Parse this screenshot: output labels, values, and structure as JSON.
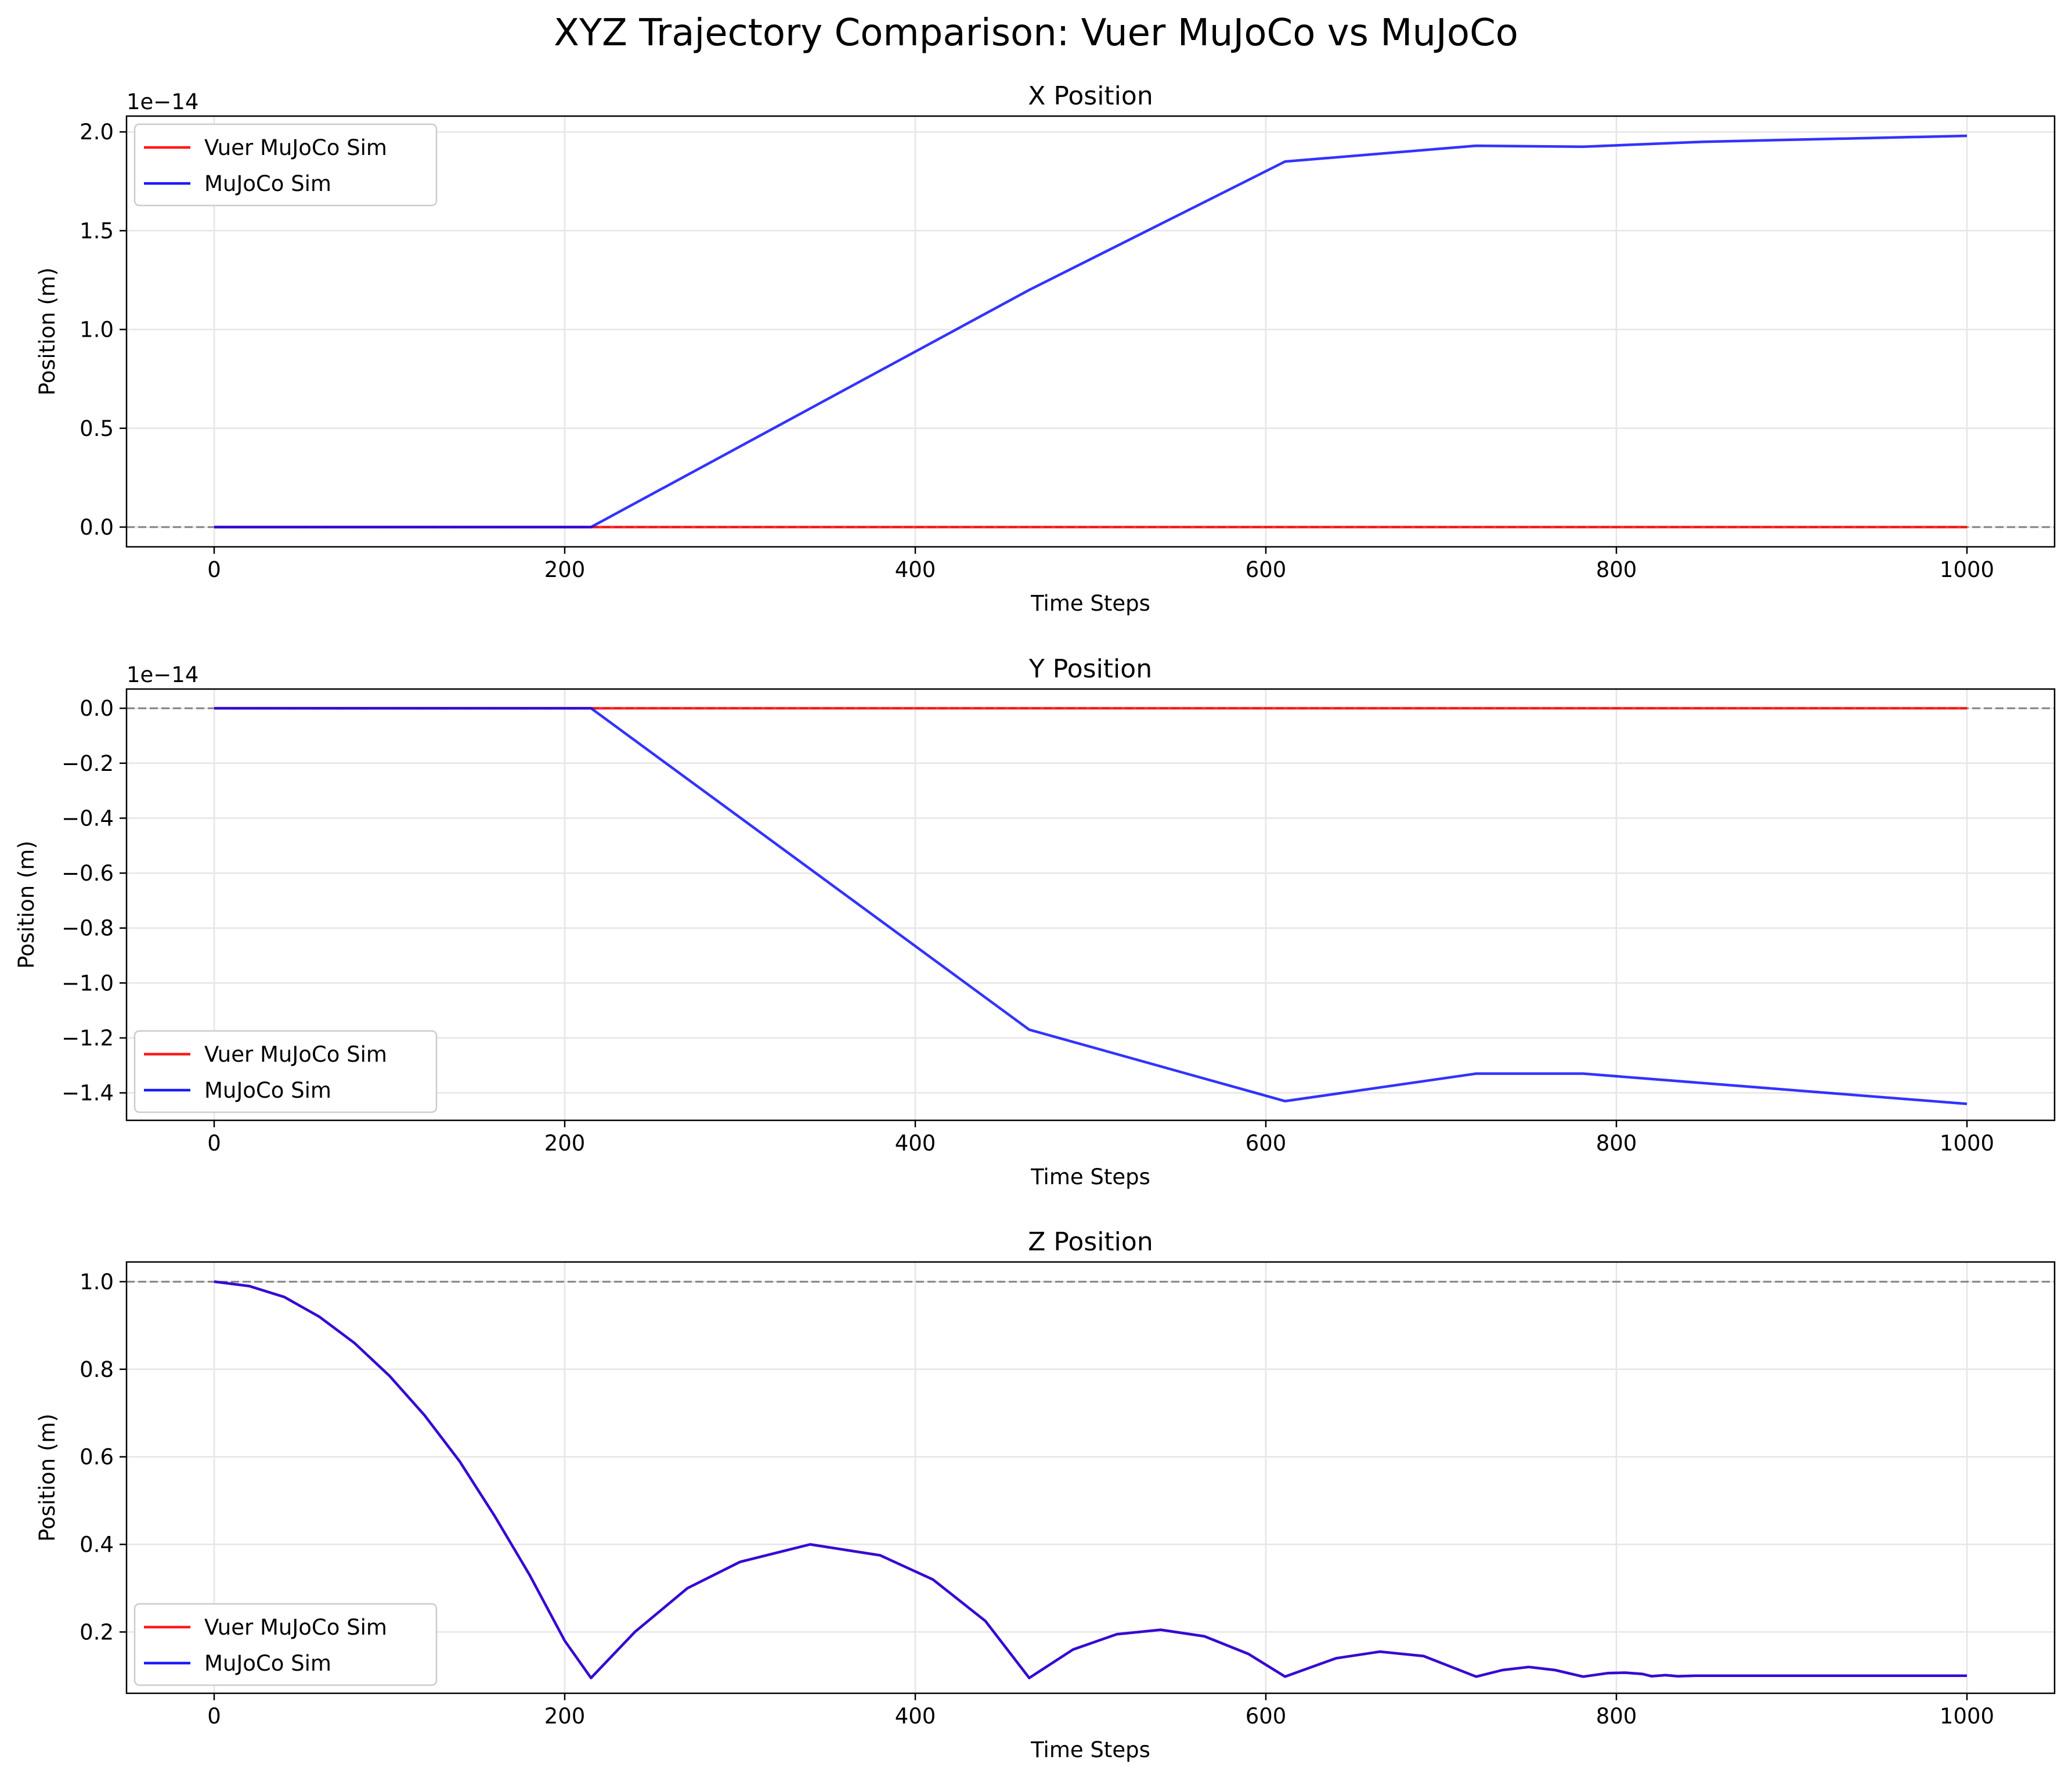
{
  "figure_title": "XYZ Trajectory Comparison: Vuer MuJoCo vs MuJoCo",
  "colors": {
    "vuer": "#ff0000",
    "mujoco": "#0000ff",
    "reference_line": "#808080",
    "grid": "#e6e6e6"
  },
  "chart_data": [
    {
      "type": "line",
      "title": "X Position",
      "xlabel": "Time Steps",
      "ylabel": "Position (m)",
      "offset_text": "1e−14",
      "xlim": [
        -50,
        1050
      ],
      "ylim": [
        -0.1,
        2.08
      ],
      "xticks": [
        0,
        200,
        400,
        600,
        800,
        1000
      ],
      "xtick_labels": [
        "0",
        "200",
        "400",
        "600",
        "800",
        "1000"
      ],
      "yticks": [
        0.0,
        0.5,
        1.0,
        1.5,
        2.0
      ],
      "ytick_labels": [
        "0.0",
        "0.5",
        "1.0",
        "1.5",
        "2.0"
      ],
      "grid": true,
      "reference_line": 0.0,
      "legend_position": "upper left",
      "series": [
        {
          "name": "Vuer MuJoCo Sim",
          "color": "vuer",
          "x": [
            0,
            1000
          ],
          "y": [
            0.0,
            0.0
          ]
        },
        {
          "name": "MuJoCo Sim",
          "color": "mujoco",
          "x": [
            0,
            215,
            465,
            611,
            720,
            781,
            850,
            1000
          ],
          "y": [
            0.0,
            0.0,
            1.2,
            1.85,
            1.93,
            1.925,
            1.95,
            1.98
          ]
        }
      ]
    },
    {
      "type": "line",
      "title": "Y Position",
      "xlabel": "Time Steps",
      "ylabel": "Position (m)",
      "offset_text": "1e−14",
      "xlim": [
        -50,
        1050
      ],
      "ylim": [
        -1.5,
        0.07
      ],
      "xticks": [
        0,
        200,
        400,
        600,
        800,
        1000
      ],
      "xtick_labels": [
        "0",
        "200",
        "400",
        "600",
        "800",
        "1000"
      ],
      "yticks": [
        0.0,
        -0.2,
        -0.4,
        -0.6,
        -0.8,
        -1.0,
        -1.2,
        -1.4
      ],
      "ytick_labels": [
        "0.0",
        "−0.2",
        "−0.4",
        "−0.6",
        "−0.8",
        "−1.0",
        "−1.2",
        "−1.4"
      ],
      "grid": true,
      "reference_line": 0.0,
      "legend_position": "lower left",
      "series": [
        {
          "name": "Vuer MuJoCo Sim",
          "color": "vuer",
          "x": [
            0,
            1000
          ],
          "y": [
            0.0,
            0.0
          ]
        },
        {
          "name": "MuJoCo Sim",
          "color": "mujoco",
          "x": [
            0,
            215,
            465,
            611,
            720,
            781,
            1000
          ],
          "y": [
            0.0,
            0.0,
            -1.17,
            -1.43,
            -1.33,
            -1.33,
            -1.44
          ]
        }
      ]
    },
    {
      "type": "line",
      "title": "Z Position",
      "xlabel": "Time Steps",
      "ylabel": "Position (m)",
      "offset_text": "",
      "xlim": [
        -50,
        1050
      ],
      "ylim": [
        0.06,
        1.045
      ],
      "xticks": [
        0,
        200,
        400,
        600,
        800,
        1000
      ],
      "xtick_labels": [
        "0",
        "200",
        "400",
        "600",
        "800",
        "1000"
      ],
      "yticks": [
        0.2,
        0.4,
        0.6,
        0.8,
        1.0
      ],
      "ytick_labels": [
        "0.2",
        "0.4",
        "0.6",
        "0.8",
        "1.0"
      ],
      "grid": true,
      "reference_line": 1.0,
      "legend_position": "lower left",
      "series": [
        {
          "name": "Vuer MuJoCo Sim",
          "color": "vuer",
          "x": [
            0,
            20,
            40,
            60,
            80,
            100,
            120,
            140,
            160,
            180,
            200,
            215,
            240,
            270,
            300,
            340,
            380,
            410,
            440,
            465,
            490,
            515,
            540,
            565,
            590,
            611,
            640,
            665,
            690,
            720,
            735,
            750,
            765,
            781,
            795,
            805,
            815,
            820,
            828,
            835,
            845,
            1000
          ],
          "y": [
            1.0,
            0.99,
            0.965,
            0.92,
            0.86,
            0.785,
            0.695,
            0.59,
            0.465,
            0.33,
            0.18,
            0.095,
            0.2,
            0.3,
            0.36,
            0.4,
            0.375,
            0.32,
            0.225,
            0.095,
            0.16,
            0.195,
            0.205,
            0.19,
            0.15,
            0.098,
            0.14,
            0.155,
            0.145,
            0.098,
            0.113,
            0.12,
            0.113,
            0.098,
            0.106,
            0.107,
            0.104,
            0.099,
            0.1015,
            0.099,
            0.1,
            0.1
          ]
        },
        {
          "name": "MuJoCo Sim",
          "color": "mujoco",
          "x": [
            0,
            20,
            40,
            60,
            80,
            100,
            120,
            140,
            160,
            180,
            200,
            215,
            240,
            270,
            300,
            340,
            380,
            410,
            440,
            465,
            490,
            515,
            540,
            565,
            590,
            611,
            640,
            665,
            690,
            720,
            735,
            750,
            765,
            781,
            795,
            805,
            815,
            820,
            828,
            835,
            845,
            1000
          ],
          "y": [
            1.0,
            0.99,
            0.965,
            0.92,
            0.86,
            0.785,
            0.695,
            0.59,
            0.465,
            0.33,
            0.18,
            0.095,
            0.2,
            0.3,
            0.36,
            0.4,
            0.375,
            0.32,
            0.225,
            0.095,
            0.16,
            0.195,
            0.205,
            0.19,
            0.15,
            0.098,
            0.14,
            0.155,
            0.145,
            0.098,
            0.113,
            0.12,
            0.113,
            0.098,
            0.106,
            0.107,
            0.104,
            0.099,
            0.1015,
            0.099,
            0.1,
            0.1
          ]
        }
      ]
    }
  ]
}
